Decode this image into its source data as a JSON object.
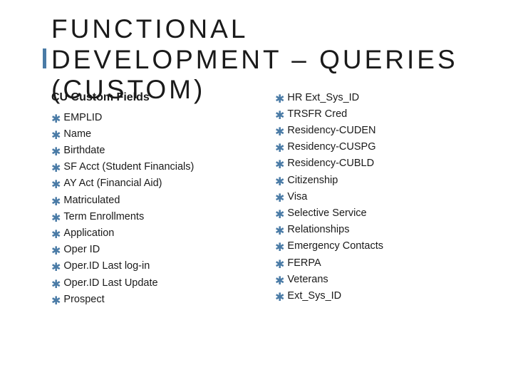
{
  "title": "FUNCTIONAL DEVELOPMENT – QUERIES (CUSTOM)",
  "subtitle": "CU Custom Fields",
  "accent_color": "#4a7ba6",
  "text_color": "#1a1a1a",
  "bullet_glyph": "✱",
  "columns": {
    "left": [
      "EMPLID",
      "Name",
      "Birthdate",
      "SF Acct (Student Financials)",
      "AY Act (Financial Aid)",
      "Matriculated",
      "Term Enrollments",
      "Application",
      "Oper ID",
      "Oper.ID Last log-in",
      "Oper.ID Last Update",
      "Prospect"
    ],
    "right": [
      "HR Ext_Sys_ID",
      "TRSFR Cred",
      "Residency-CUDEN",
      "Residency-CUSPG",
      "Residency-CUBLD",
      "Citizenship",
      "Visa",
      "Selective Service",
      "Relationships",
      "Emergency Contacts",
      "FERPA",
      "Veterans",
      "Ext_Sys_ID"
    ]
  }
}
